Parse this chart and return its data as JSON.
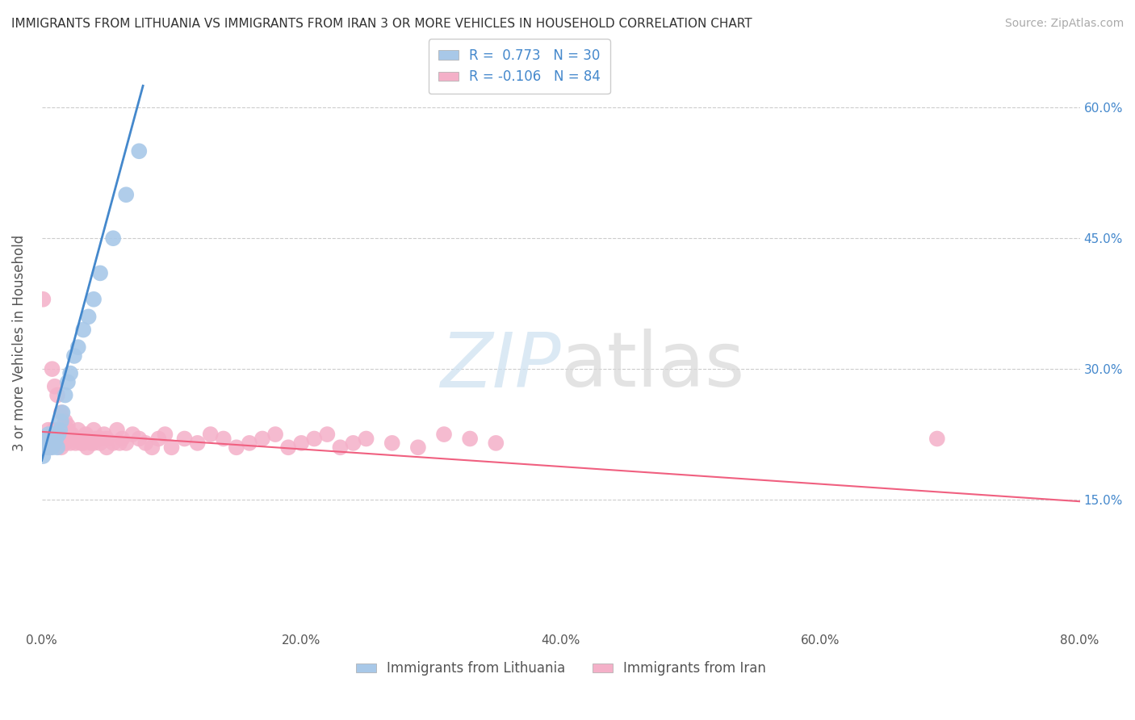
{
  "title": "IMMIGRANTS FROM LITHUANIA VS IMMIGRANTS FROM IRAN 3 OR MORE VEHICLES IN HOUSEHOLD CORRELATION CHART",
  "source": "Source: ZipAtlas.com",
  "ylabel_label": "3 or more Vehicles in Household",
  "xlabel_label_lit": "Immigrants from Lithuania",
  "xlabel_label_iran": "Immigrants from Iran",
  "xlim": [
    0.0,
    0.8
  ],
  "ylim": [
    0.0,
    0.66
  ],
  "y_ticks": [
    0.15,
    0.3,
    0.45,
    0.6
  ],
  "y_tick_labels": [
    "15.0%",
    "30.0%",
    "45.0%",
    "60.0%"
  ],
  "x_ticks": [
    0.0,
    0.2,
    0.4,
    0.6,
    0.8
  ],
  "x_tick_labels": [
    "0.0%",
    "20.0%",
    "40.0%",
    "60.0%",
    "80.0%"
  ],
  "legend_r_lit": "0.773",
  "legend_n_lit": "30",
  "legend_r_iran": "-0.106",
  "legend_n_iran": "84",
  "lit_color": "#a8c8e8",
  "iran_color": "#f4b0c8",
  "lit_line_color": "#4488cc",
  "iran_line_color": "#f06080",
  "lit_points_x": [
    0.0,
    0.001,
    0.002,
    0.003,
    0.004,
    0.005,
    0.005,
    0.006,
    0.007,
    0.008,
    0.009,
    0.01,
    0.011,
    0.012,
    0.013,
    0.014,
    0.015,
    0.016,
    0.018,
    0.02,
    0.022,
    0.025,
    0.028,
    0.032,
    0.036,
    0.04,
    0.045,
    0.055,
    0.065,
    0.075
  ],
  "lit_points_y": [
    0.22,
    0.2,
    0.215,
    0.22,
    0.215,
    0.21,
    0.225,
    0.215,
    0.22,
    0.21,
    0.225,
    0.215,
    0.22,
    0.21,
    0.225,
    0.23,
    0.24,
    0.25,
    0.27,
    0.285,
    0.295,
    0.315,
    0.325,
    0.345,
    0.36,
    0.38,
    0.41,
    0.45,
    0.5,
    0.55
  ],
  "iran_points_x": [
    0.001,
    0.002,
    0.003,
    0.004,
    0.005,
    0.005,
    0.006,
    0.006,
    0.007,
    0.008,
    0.009,
    0.009,
    0.01,
    0.011,
    0.012,
    0.012,
    0.013,
    0.014,
    0.015,
    0.016,
    0.017,
    0.018,
    0.02,
    0.021,
    0.022,
    0.023,
    0.025,
    0.026,
    0.028,
    0.03,
    0.032,
    0.034,
    0.036,
    0.038,
    0.04,
    0.042,
    0.045,
    0.048,
    0.05,
    0.055,
    0.058,
    0.062,
    0.065,
    0.07,
    0.075,
    0.08,
    0.085,
    0.09,
    0.095,
    0.1,
    0.11,
    0.12,
    0.13,
    0.14,
    0.15,
    0.16,
    0.17,
    0.18,
    0.19,
    0.2,
    0.21,
    0.22,
    0.23,
    0.24,
    0.25,
    0.27,
    0.29,
    0.31,
    0.33,
    0.35,
    0.008,
    0.01,
    0.012,
    0.015,
    0.018,
    0.02,
    0.025,
    0.03,
    0.035,
    0.04,
    0.045,
    0.05,
    0.06,
    0.69
  ],
  "iran_points_y": [
    0.38,
    0.22,
    0.21,
    0.22,
    0.215,
    0.23,
    0.21,
    0.22,
    0.225,
    0.22,
    0.215,
    0.23,
    0.22,
    0.215,
    0.22,
    0.23,
    0.215,
    0.22,
    0.21,
    0.225,
    0.22,
    0.215,
    0.23,
    0.22,
    0.215,
    0.225,
    0.22,
    0.215,
    0.23,
    0.22,
    0.215,
    0.225,
    0.22,
    0.215,
    0.23,
    0.22,
    0.215,
    0.225,
    0.22,
    0.215,
    0.23,
    0.22,
    0.215,
    0.225,
    0.22,
    0.215,
    0.21,
    0.22,
    0.225,
    0.21,
    0.22,
    0.215,
    0.225,
    0.22,
    0.21,
    0.215,
    0.22,
    0.225,
    0.21,
    0.215,
    0.22,
    0.225,
    0.21,
    0.215,
    0.22,
    0.215,
    0.21,
    0.225,
    0.22,
    0.215,
    0.3,
    0.28,
    0.27,
    0.25,
    0.24,
    0.235,
    0.22,
    0.215,
    0.21,
    0.215,
    0.22,
    0.21,
    0.215,
    0.22
  ],
  "iran_trend_x0": 0.0,
  "iran_trend_x1": 0.8,
  "iran_trend_y0": 0.228,
  "iran_trend_y1": 0.148,
  "lit_trend_x0": 0.0,
  "lit_trend_x1": 0.078,
  "lit_trend_y0": 0.195,
  "lit_trend_y1": 0.625
}
